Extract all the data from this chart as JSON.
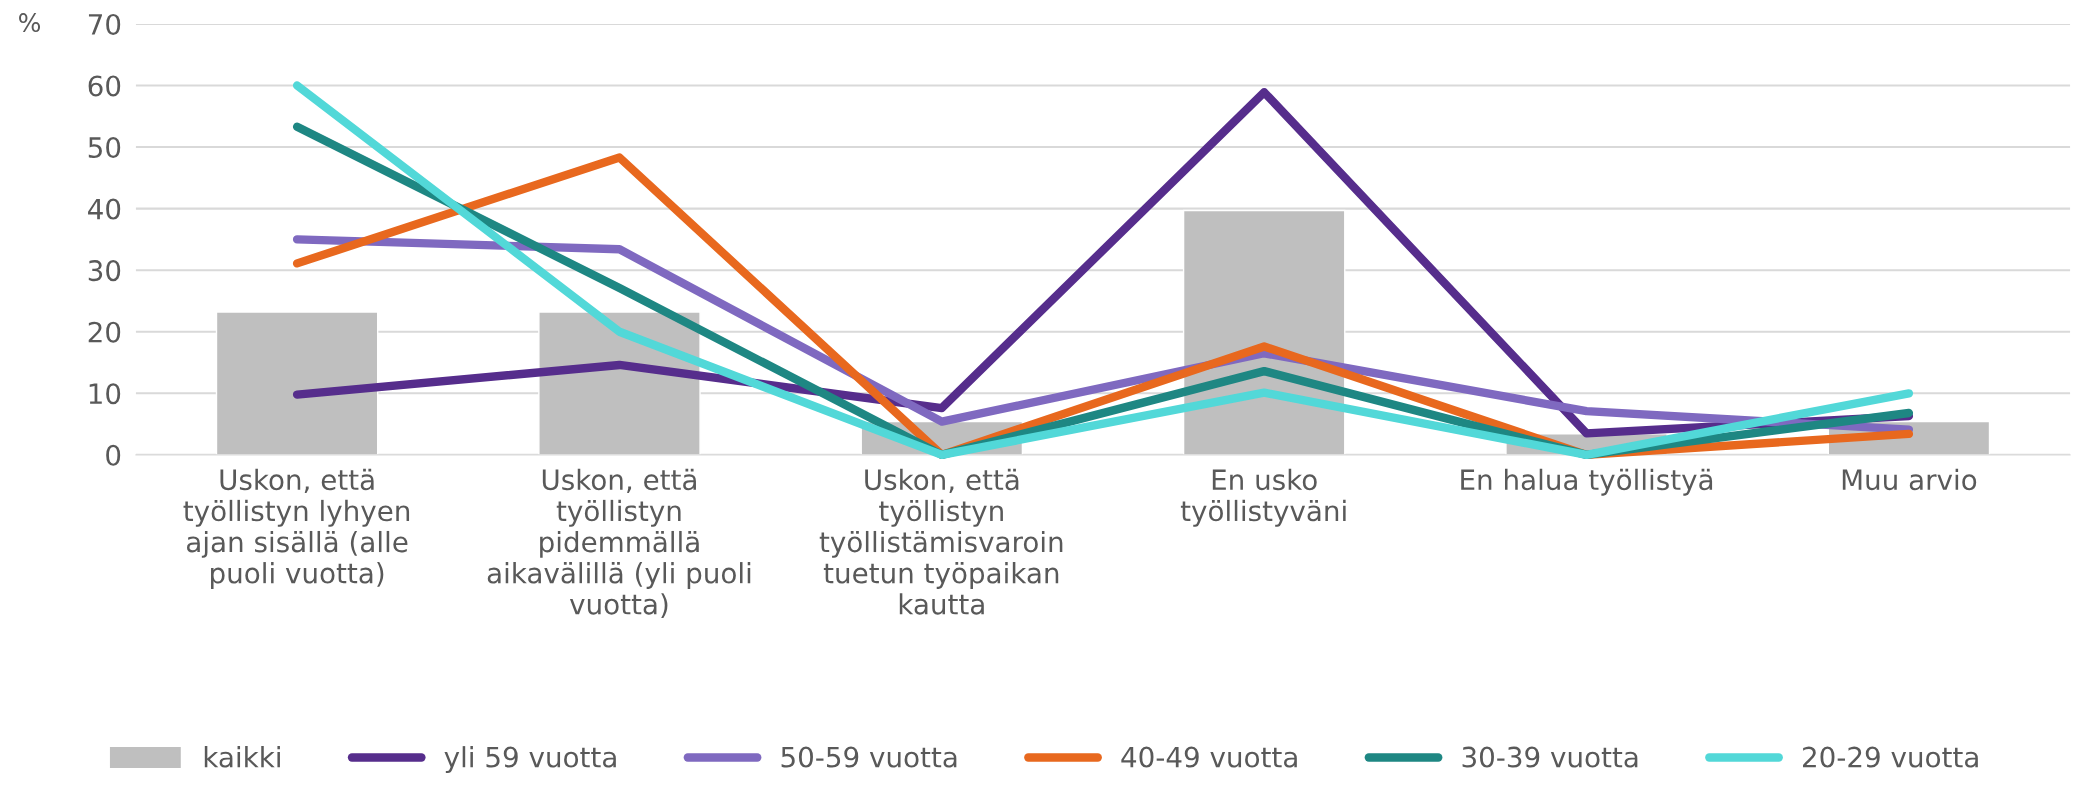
{
  "chart_data": {
    "type": "bar",
    "ylabel": "%",
    "categories": [
      "Uskon, että\ntyöllistyn lyhyen\najan sisällä (alle\npuoli vuotta)",
      "Uskon, että\ntyöllistyn\npidemmällä\naikavälillä (yli puoli\nvuotta)",
      "Uskon, että\ntyöllistyn\ntyöllistämisvaroin\ntuetun työpaikan\nkautta",
      "En usko\ntyöllistyväni",
      "En halua työllistyä",
      "Muu arvio"
    ],
    "series": [
      {
        "name": "kaikki",
        "color": "#bfbfbf",
        "values": [
          23.2,
          23.2,
          5.4,
          39.7,
          3.4,
          5.4
        ]
      },
      {
        "name": "yli 59 vuotta",
        "type": "line",
        "color": "#562d8c",
        "values": [
          9.8,
          14.6,
          7.6,
          58.9,
          3.5,
          6.3
        ]
      },
      {
        "name": "50-59 vuotta",
        "type": "line",
        "color": "#7f69c0",
        "values": [
          35.0,
          33.4,
          5.4,
          16.5,
          7.1,
          4.1
        ]
      },
      {
        "name": "40-49 vuotta",
        "type": "line",
        "color": "#e8681e",
        "values": [
          31.1,
          48.3,
          0,
          17.6,
          0,
          3.4
        ]
      },
      {
        "name": "30-39 vuotta",
        "type": "line",
        "color": "#1e8783",
        "values": [
          53.3,
          27.1,
          0,
          13.6,
          0,
          6.8
        ]
      },
      {
        "name": "20-29 vuotta",
        "type": "line",
        "color": "#52d8d8",
        "values": [
          60.0,
          20.0,
          0,
          10.1,
          0,
          10.0
        ]
      }
    ],
    "ylim": [
      0,
      70
    ],
    "yticks": [
      0,
      10,
      20,
      30,
      40,
      50,
      60,
      70
    ],
    "grid": "y",
    "legend": "bottom"
  }
}
